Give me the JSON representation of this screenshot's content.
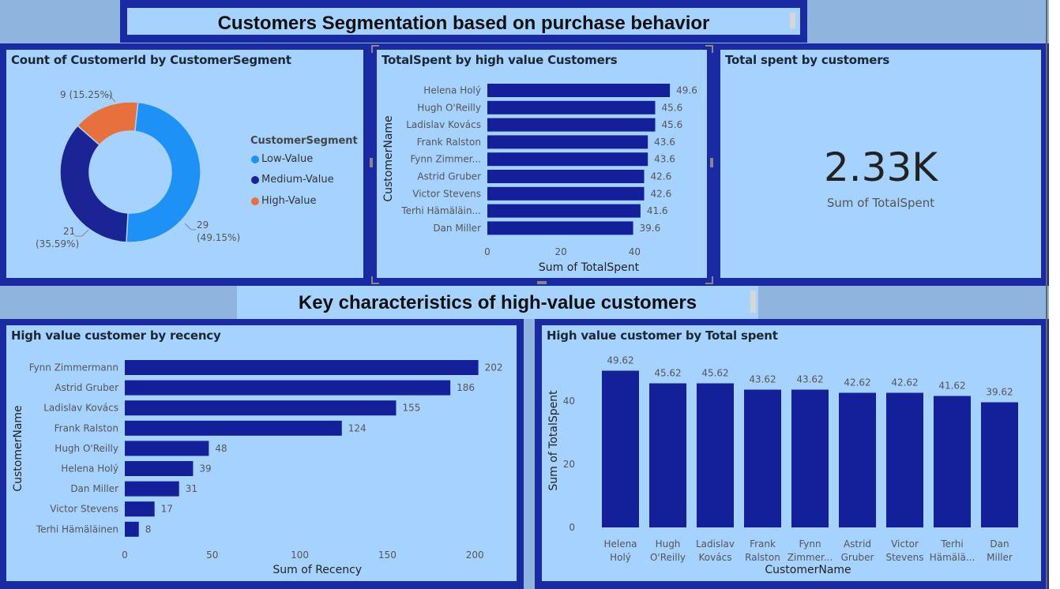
{
  "banner_top": {
    "title": "Customers Segmentation based on purchase behavior"
  },
  "banner_mid": {
    "title": "Key characteristics of high-value customers"
  },
  "colors": {
    "background": "#8fb4de",
    "band": "#1a2aa3",
    "panel": "#a6d2ff",
    "bar": "#14209a",
    "low_value": "#1d91f5",
    "medium_value": "#1a2494",
    "high_value": "#e8703c"
  },
  "panels": {
    "donut": {
      "title": "Count of CustomerId by CustomerSegment"
    },
    "top_bar": {
      "title": "TotalSpent by high value Customers"
    },
    "kpi": {
      "title": "Total spent by customers",
      "value": "2.33K",
      "label": "Sum of TotalSpent"
    },
    "recency": {
      "title": "High value customer by recency"
    },
    "column": {
      "title": "High value customer by Total spent"
    }
  },
  "chart_data": [
    {
      "type": "pie",
      "name": "donut",
      "title": "Count of CustomerId by CustomerSegment",
      "legend_title": "CustomerSegment",
      "legend_position": "right",
      "slices": [
        {
          "label": "Low-Value",
          "value": 29,
          "percent": "49.15%",
          "color": "#1d91f5"
        },
        {
          "label": "Medium-Value",
          "value": 21,
          "percent": "35.59%",
          "color": "#1a2494"
        },
        {
          "label": "High-Value",
          "value": 9,
          "percent": "15.25%",
          "color": "#e8703c"
        }
      ],
      "data_labels": [
        "29",
        "(49.15%)",
        "21",
        "(35.59%)",
        "9 (15.25%)"
      ]
    },
    {
      "type": "bar",
      "name": "top_bar",
      "orientation": "horizontal",
      "title": "TotalSpent by high value Customers",
      "xlabel": "Sum of TotalSpent",
      "ylabel": "CustomerName",
      "categories": [
        "Helena Holý",
        "Hugh O'Reilly",
        "Ladislav Kovács",
        "Frank Ralston",
        "Fynn Zimmer...",
        "Astrid Gruber",
        "Victor Stevens",
        "Terhi Hämäläin...",
        "Dan Miller"
      ],
      "values": [
        49.6,
        45.6,
        45.6,
        43.6,
        43.6,
        42.6,
        42.6,
        41.6,
        39.6
      ],
      "value_labels": [
        "49.6",
        "45.6",
        "45.6",
        "43.6",
        "43.6",
        "42.6",
        "42.6",
        "41.6",
        "39.6"
      ],
      "xticks": [
        "0",
        "20",
        "40"
      ],
      "xlim": [
        0,
        50
      ],
      "grid": false
    },
    {
      "type": "bar",
      "name": "recency",
      "orientation": "horizontal",
      "title": "High value customer by recency",
      "xlabel": "Sum of Recency",
      "ylabel": "CustomerName",
      "categories": [
        "Fynn Zimmermann",
        "Astrid Gruber",
        "Ladislav Kovács",
        "Frank Ralston",
        "Hugh O'Reilly",
        "Helena Holý",
        "Dan Miller",
        "Victor Stevens",
        "Terhi Hämäläinen"
      ],
      "values": [
        202,
        186,
        155,
        124,
        48,
        39,
        31,
        17,
        8
      ],
      "value_labels": [
        "202",
        "186",
        "155",
        "124",
        "48",
        "39",
        "31",
        "17",
        "8"
      ],
      "xticks": [
        "0",
        "50",
        "100",
        "150",
        "200"
      ],
      "xlim": [
        0,
        220
      ],
      "grid": false
    },
    {
      "type": "bar",
      "name": "column",
      "orientation": "vertical",
      "title": "High value customer by Total spent",
      "xlabel": "CustomerName",
      "ylabel": "Sum of TotalSpent",
      "categories": [
        [
          "Helena",
          "Holý"
        ],
        [
          "Hugh",
          "O'Reilly"
        ],
        [
          "Ladislav",
          "Kovács"
        ],
        [
          "Frank",
          "Ralston"
        ],
        [
          "Fynn",
          "Zimmer..."
        ],
        [
          "Astrid",
          "Gruber"
        ],
        [
          "Victor",
          "Stevens"
        ],
        [
          "Terhi",
          "Hämälä..."
        ],
        [
          "Dan",
          "Miller"
        ]
      ],
      "values": [
        49.62,
        45.62,
        45.62,
        43.62,
        43.62,
        42.62,
        42.62,
        41.62,
        39.62
      ],
      "value_labels": [
        "49.62",
        "45.62",
        "45.62",
        "43.62",
        "43.62",
        "42.62",
        "42.62",
        "41.62",
        "39.62"
      ],
      "yticks": [
        "0",
        "20",
        "40"
      ],
      "ylim": [
        0,
        50
      ],
      "grid": false
    }
  ]
}
